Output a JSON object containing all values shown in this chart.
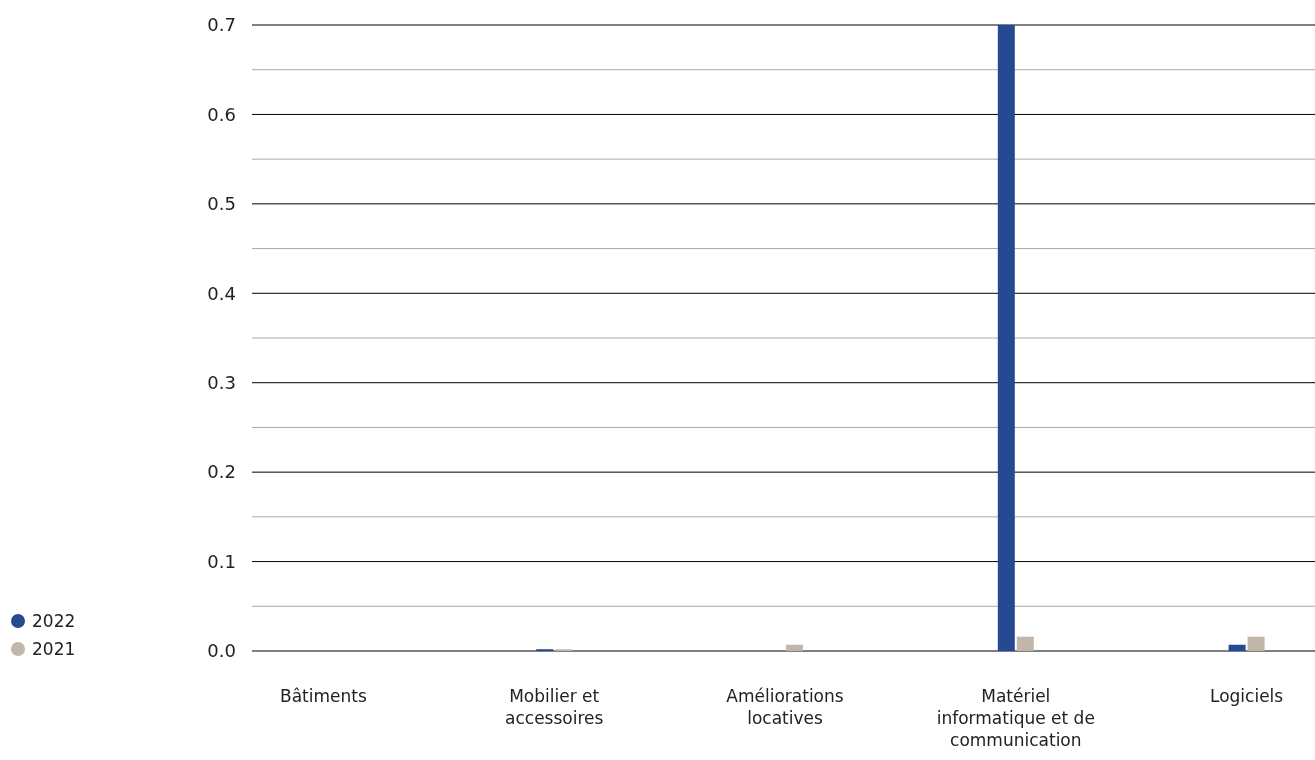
{
  "chart_data": {
    "type": "bar",
    "categories": [
      "Bâtiments",
      "Mobilier et accessoires",
      "Améliorations locatives",
      "Matériel informatique et de communication",
      "Logiciels"
    ],
    "series": [
      {
        "name": "2022",
        "color": "#264a92",
        "values": [
          0,
          0.002,
          0,
          0.7,
          0.007
        ]
      },
      {
        "name": "2021",
        "color": "#c2b5a9",
        "values": [
          0,
          0.002,
          0.007,
          0.016,
          0.016
        ]
      }
    ],
    "ylim": [
      0,
      0.7
    ],
    "yticks": [
      {
        "value": 0,
        "label": "0.0"
      },
      {
        "value": 0.05,
        "label": null
      },
      {
        "value": 0.1,
        "label": "0.1"
      },
      {
        "value": 0.15,
        "label": null
      },
      {
        "value": 0.2,
        "label": "0.2"
      },
      {
        "value": 0.25,
        "label": null
      },
      {
        "value": 0.3,
        "label": "0.3"
      },
      {
        "value": 0.35,
        "label": null
      },
      {
        "value": 0.4,
        "label": "0.4"
      },
      {
        "value": 0.45,
        "label": null
      },
      {
        "value": 0.5,
        "label": "0.5"
      },
      {
        "value": 0.55,
        "label": null
      },
      {
        "value": 0.6,
        "label": "0.6"
      },
      {
        "value": 0.65,
        "label": null
      },
      {
        "value": 0.7,
        "label": "0.7"
      }
    ],
    "grid": true,
    "legend": "bottom left"
  }
}
